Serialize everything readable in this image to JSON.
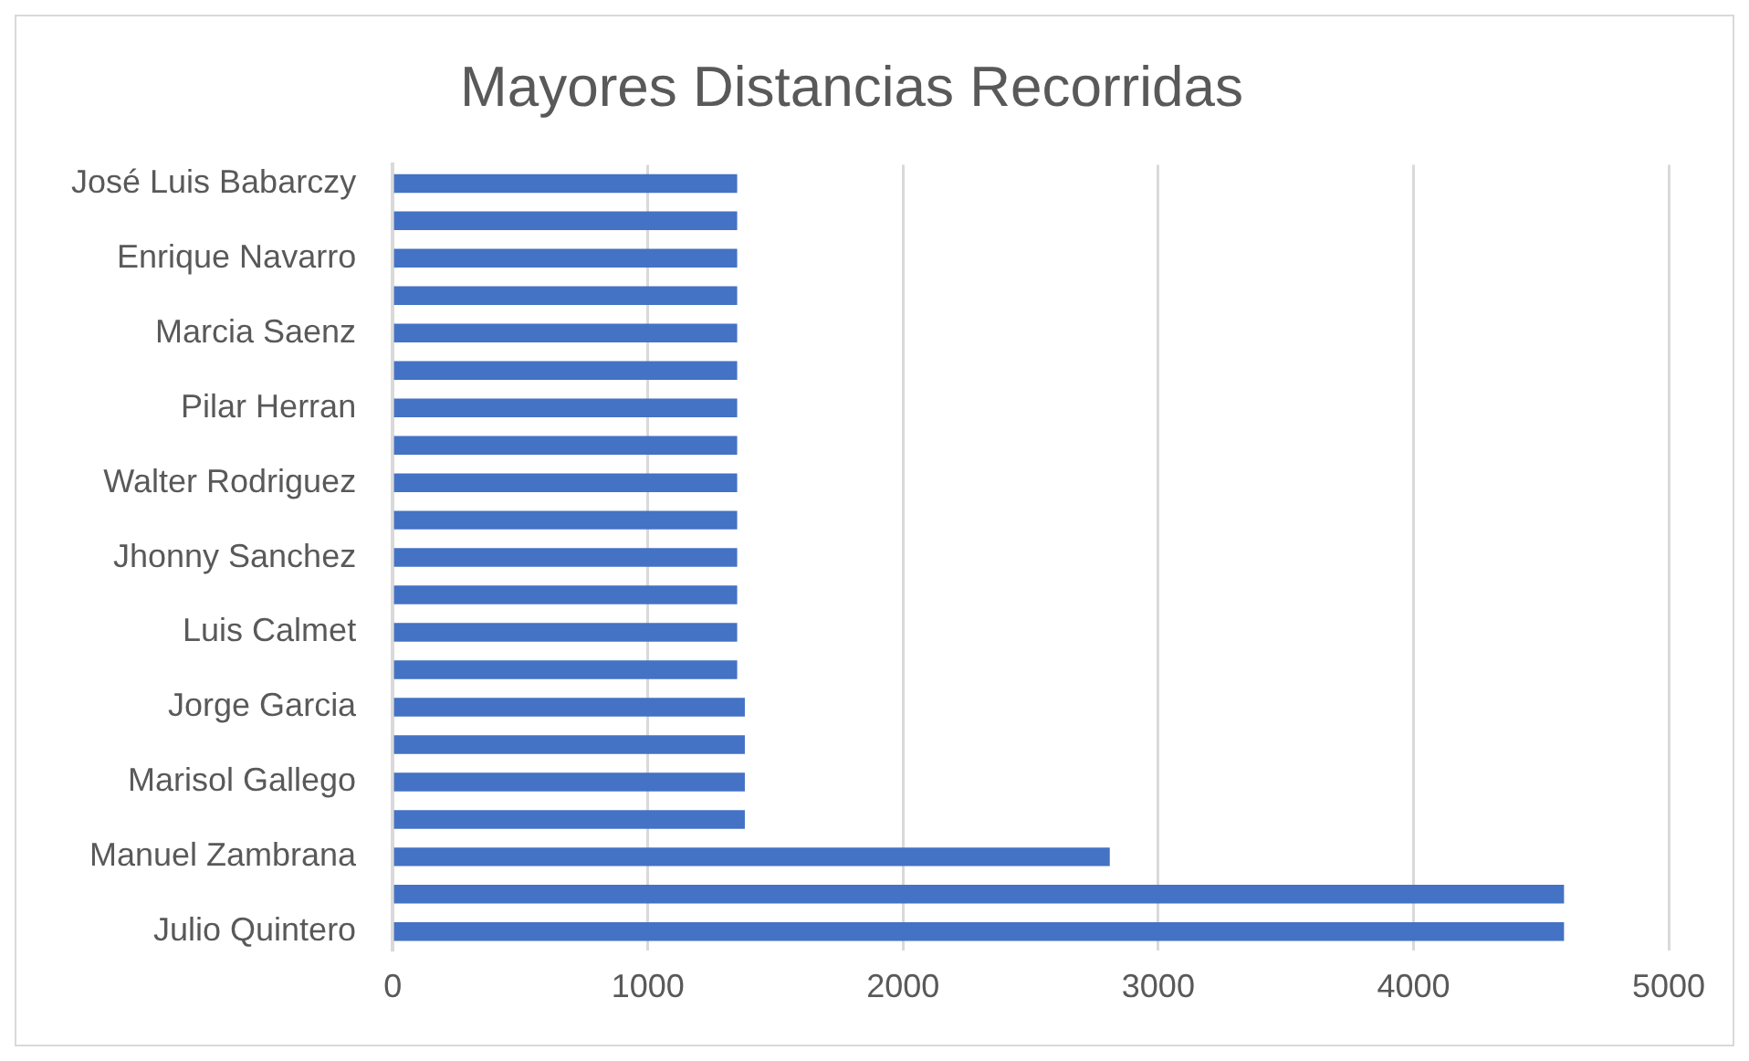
{
  "chart_data": {
    "type": "bar",
    "orientation": "horizontal",
    "title": "Mayores Distancias Recorridas",
    "categories": [
      "José Luis Babarczy",
      null,
      "Enrique Navarro",
      null,
      "Marcia Saenz",
      null,
      "Pilar Herran",
      null,
      "Walter Rodriguez",
      null,
      "Jhonny Sanchez",
      null,
      "Luis Calmet",
      null,
      "Jorge Garcia",
      null,
      "Marisol Gallego",
      null,
      "Manuel Zambrana",
      null,
      "Julio Quintero"
    ],
    "values": [
      1350,
      1350,
      1350,
      1350,
      1350,
      1350,
      1350,
      1350,
      1350,
      1350,
      1350,
      1350,
      1350,
      1350,
      1380,
      1380,
      1380,
      1380,
      2810,
      4590,
      4590
    ],
    "color": "#4472c4",
    "xlim": [
      0,
      5000
    ],
    "xticks": [
      0,
      1000,
      2000,
      3000,
      4000,
      5000
    ],
    "grid": "x",
    "legend": false
  }
}
